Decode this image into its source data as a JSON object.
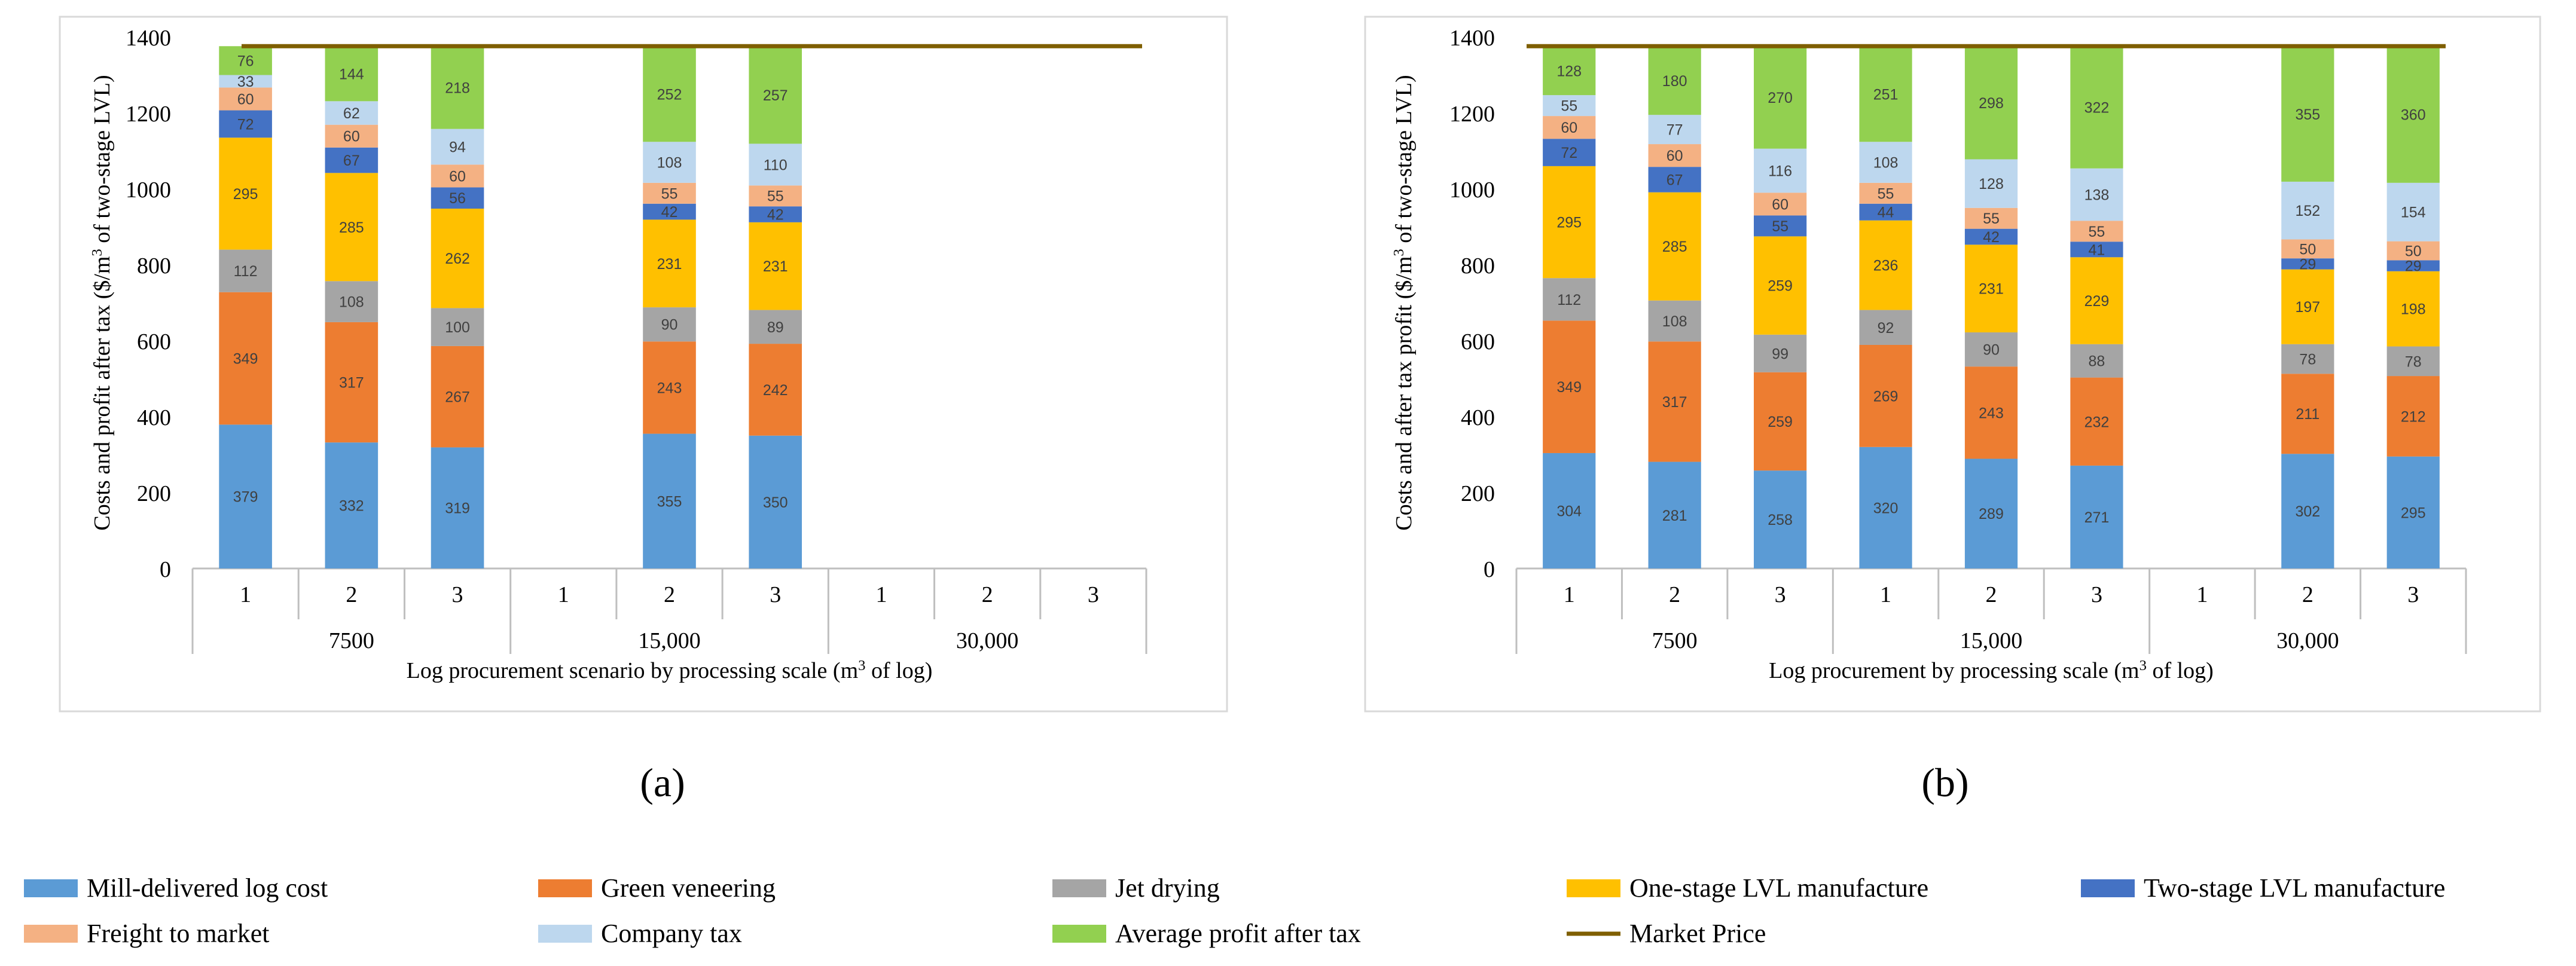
{
  "figure_labels": [
    "(a)",
    "(b)"
  ],
  "legend": [
    {
      "name": "Mill-delivered log cost",
      "color": "#5B9BD5"
    },
    {
      "name": "Green veneering",
      "color": "#ED7D31"
    },
    {
      "name": "Jet drying",
      "color": "#A5A5A5"
    },
    {
      "name": "One-stage LVL manufacture",
      "color": "#FFC000"
    },
    {
      "name": "Two-stage LVL manufacture",
      "color": "#4472C4"
    },
    {
      "name": "Freight to market",
      "color": "#F4B183"
    },
    {
      "name": "Company tax",
      "color": "#BDD7EE"
    },
    {
      "name": "Average profit after tax",
      "color": "#92D050"
    },
    {
      "name": "Market Price",
      "color": "#7F5F00"
    }
  ],
  "chart_data": [
    {
      "id": "a",
      "type": "bar",
      "stacked": true,
      "ylabel_parts": [
        "Costs and profit after tax ($/m",
        "3",
        " of two-stage LVL)"
      ],
      "xlabel_parts": [
        "Log procurement scenario by processing scale (m",
        "3",
        " of log)"
      ],
      "ylim": [
        0,
        1400
      ],
      "yticks": [
        0,
        200,
        400,
        600,
        800,
        1000,
        1200,
        1400
      ],
      "groups": [
        "7500",
        "15,000",
        "30,000"
      ],
      "categories": [
        "1",
        "2",
        "3",
        "1",
        "2",
        "3",
        "1",
        "2",
        "3"
      ],
      "series": [
        {
          "name": "Mill-delivered log cost",
          "values": [
            379,
            332,
            319,
            null,
            355,
            350,
            null,
            null,
            null
          ]
        },
        {
          "name": "Green veneering",
          "values": [
            349,
            317,
            267,
            null,
            243,
            242,
            null,
            null,
            null
          ]
        },
        {
          "name": "Jet drying",
          "values": [
            112,
            108,
            100,
            null,
            90,
            89,
            null,
            null,
            null
          ]
        },
        {
          "name": "One-stage LVL manufacture",
          "values": [
            295,
            285,
            262,
            null,
            231,
            231,
            null,
            null,
            null
          ]
        },
        {
          "name": "Two-stage LVL manufacture",
          "values": [
            72,
            67,
            56,
            null,
            42,
            42,
            null,
            null,
            null
          ]
        },
        {
          "name": "Freight to market",
          "values": [
            60,
            60,
            60,
            null,
            55,
            55,
            null,
            null,
            null
          ]
        },
        {
          "name": "Company tax",
          "values": [
            33,
            62,
            94,
            null,
            108,
            110,
            null,
            null,
            null
          ]
        },
        {
          "name": "Average profit after tax",
          "values": [
            76,
            144,
            218,
            null,
            252,
            257,
            null,
            null,
            null
          ]
        }
      ],
      "market_price": 1376
    },
    {
      "id": "b",
      "type": "bar",
      "stacked": true,
      "ylabel_parts": [
        "Costs and after tax profit ($/m",
        "3",
        " of two-stage LVL)"
      ],
      "xlabel_parts": [
        "Log procurement by processing scale (m",
        "3",
        " of log)"
      ],
      "ylim": [
        0,
        1400
      ],
      "yticks": [
        0,
        200,
        400,
        600,
        800,
        1000,
        1200,
        1400
      ],
      "groups": [
        "7500",
        "15,000",
        "30,000"
      ],
      "categories": [
        "1",
        "2",
        "3",
        "1",
        "2",
        "3",
        "1",
        "2",
        "3"
      ],
      "series": [
        {
          "name": "Mill-delivered log cost",
          "values": [
            304,
            281,
            258,
            320,
            289,
            271,
            null,
            302,
            295
          ]
        },
        {
          "name": "Green veneering",
          "values": [
            349,
            317,
            259,
            269,
            243,
            232,
            null,
            211,
            212
          ]
        },
        {
          "name": "Jet drying",
          "values": [
            112,
            108,
            99,
            92,
            90,
            88,
            null,
            78,
            78
          ]
        },
        {
          "name": "One-stage LVL manufacture",
          "values": [
            295,
            285,
            259,
            236,
            231,
            229,
            null,
            197,
            198
          ]
        },
        {
          "name": "Two-stage LVL manufacture",
          "values": [
            72,
            67,
            55,
            44,
            42,
            41,
            null,
            29,
            29
          ]
        },
        {
          "name": "Freight to market",
          "values": [
            60,
            60,
            60,
            55,
            55,
            55,
            null,
            50,
            50
          ]
        },
        {
          "name": "Company tax",
          "values": [
            55,
            77,
            116,
            108,
            128,
            138,
            null,
            152,
            154
          ]
        },
        {
          "name": "Average profit after tax",
          "values": [
            128,
            180,
            270,
            251,
            298,
            322,
            null,
            355,
            360
          ]
        }
      ],
      "market_price": 1376
    }
  ]
}
